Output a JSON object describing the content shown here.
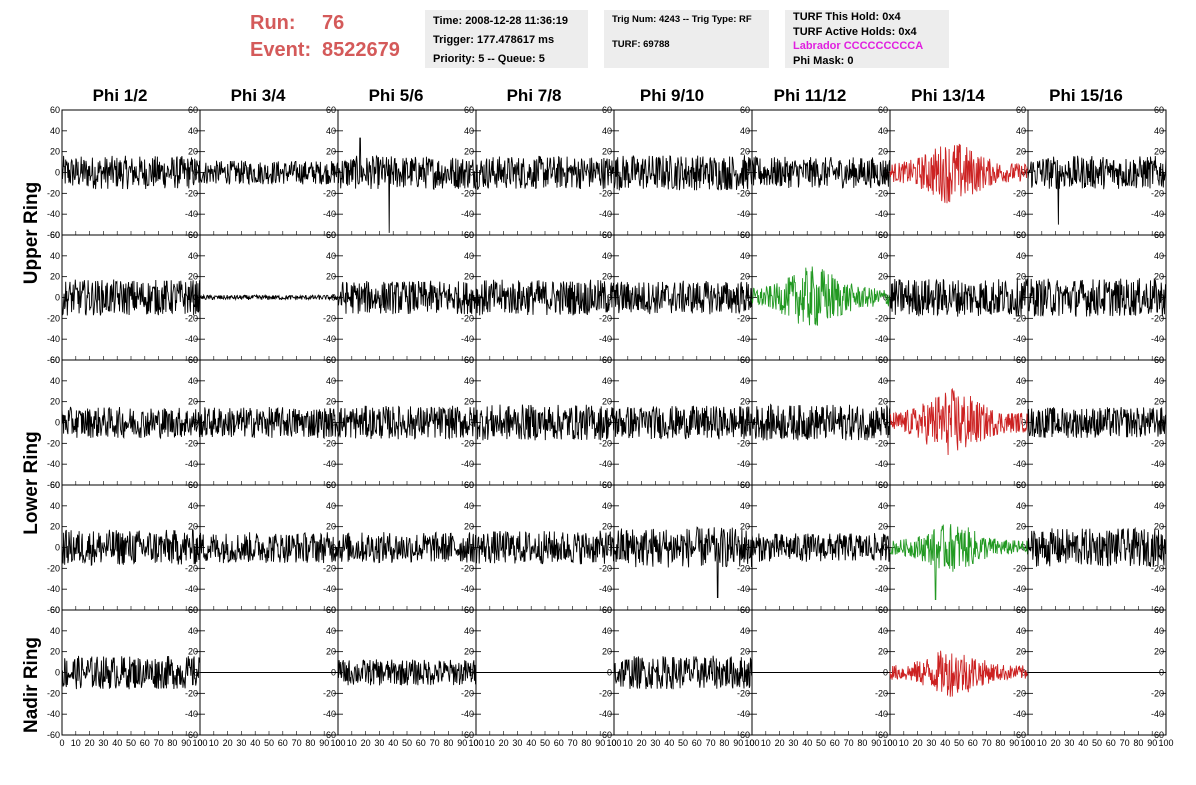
{
  "header": {
    "run_label": "Run:",
    "run_value": "76",
    "event_label": "Event:",
    "event_value": "8522679"
  },
  "info1": {
    "time": "Time: 2008-12-28 11:36:19",
    "trigger": "Trigger: 177.478617 ms",
    "priority": "Priority: 5 -- Queue: 5"
  },
  "info2": {
    "trig": "Trig Num: 4243 -- Trig Type: RF",
    "turf": "TURF: 69788"
  },
  "info3": {
    "this_hold": "TURF This Hold: 0x4",
    "active_holds": "TURF Active Holds: 0x4",
    "labrador": "Labrador CCCCCCCCCA",
    "phi_mask": "Phi Mask: 0"
  },
  "columns": [
    "Phi 1/2",
    "Phi 3/4",
    "Phi 5/6",
    "Phi 7/8",
    "Phi 9/10",
    "Phi 11/12",
    "Phi 13/14",
    "Phi 15/16"
  ],
  "ring_labels": [
    "Upper Ring",
    "Lower Ring",
    "Nadir Ring"
  ],
  "colors": {
    "normal": "#000000",
    "triggered_red": "#cc2222",
    "triggered_green": "#229922",
    "header_red": "#d45a5a",
    "magenta": "#e020e0"
  },
  "chart_data": {
    "type": "line",
    "grid_rows": 5,
    "grid_cols": 8,
    "xlim": [
      0,
      100
    ],
    "ylim": [
      -60,
      60
    ],
    "x_ticks": [
      0,
      10,
      20,
      30,
      40,
      50,
      60,
      70,
      80,
      90,
      100
    ],
    "y_ticks": [
      -60,
      -40,
      -20,
      0,
      20,
      40,
      60
    ],
    "panels": [
      [
        {
          "amp": 14,
          "color": "normal"
        },
        {
          "amp": 10,
          "color": "normal"
        },
        {
          "amp": 14,
          "color": "normal",
          "spikes": [
            [
              37,
              -58
            ],
            [
              16,
              33
            ]
          ]
        },
        {
          "amp": 14,
          "color": "normal"
        },
        {
          "amp": 15,
          "color": "normal"
        },
        {
          "amp": 13,
          "color": "normal"
        },
        {
          "amp": 22,
          "color": "triggered_red",
          "burst": true
        },
        {
          "amp": 14,
          "color": "normal",
          "spikes": [
            [
              22,
              -50
            ]
          ]
        }
      ],
      [
        {
          "amp": 15,
          "color": "normal"
        },
        {
          "amp": 2,
          "color": "normal"
        },
        {
          "amp": 14,
          "color": "normal"
        },
        {
          "amp": 15,
          "color": "normal"
        },
        {
          "amp": 14,
          "color": "normal"
        },
        {
          "amp": 22,
          "color": "triggered_green",
          "burst": true
        },
        {
          "amp": 16,
          "color": "normal"
        },
        {
          "amp": 16,
          "color": "normal"
        }
      ],
      [
        {
          "amp": 13,
          "color": "normal"
        },
        {
          "amp": 13,
          "color": "normal"
        },
        {
          "amp": 14,
          "color": "normal"
        },
        {
          "amp": 15,
          "color": "normal"
        },
        {
          "amp": 14,
          "color": "normal"
        },
        {
          "amp": 15,
          "color": "normal"
        },
        {
          "amp": 24,
          "color": "triggered_red",
          "burst": true
        },
        {
          "amp": 13,
          "color": "normal"
        }
      ],
      [
        {
          "amp": 15,
          "color": "normal"
        },
        {
          "amp": 13,
          "color": "normal"
        },
        {
          "amp": 13,
          "color": "normal"
        },
        {
          "amp": 14,
          "color": "normal"
        },
        {
          "amp": 17,
          "color": "normal",
          "spikes": [
            [
              75,
              -48
            ]
          ]
        },
        {
          "amp": 12,
          "color": "normal"
        },
        {
          "amp": 17,
          "color": "triggered_green",
          "burst": true,
          "spikes": [
            [
              33,
              -50
            ]
          ]
        },
        {
          "amp": 16,
          "color": "normal"
        }
      ],
      [
        {
          "amp": 14,
          "color": "normal"
        },
        {
          "amp": 0,
          "color": "normal"
        },
        {
          "amp": 11,
          "color": "normal"
        },
        {
          "amp": 0,
          "color": "normal"
        },
        {
          "amp": 14,
          "color": "normal"
        },
        {
          "amp": 0,
          "color": "normal"
        },
        {
          "amp": 17,
          "color": "triggered_red",
          "burst": true
        },
        {
          "amp": 0,
          "color": "normal"
        }
      ]
    ]
  }
}
